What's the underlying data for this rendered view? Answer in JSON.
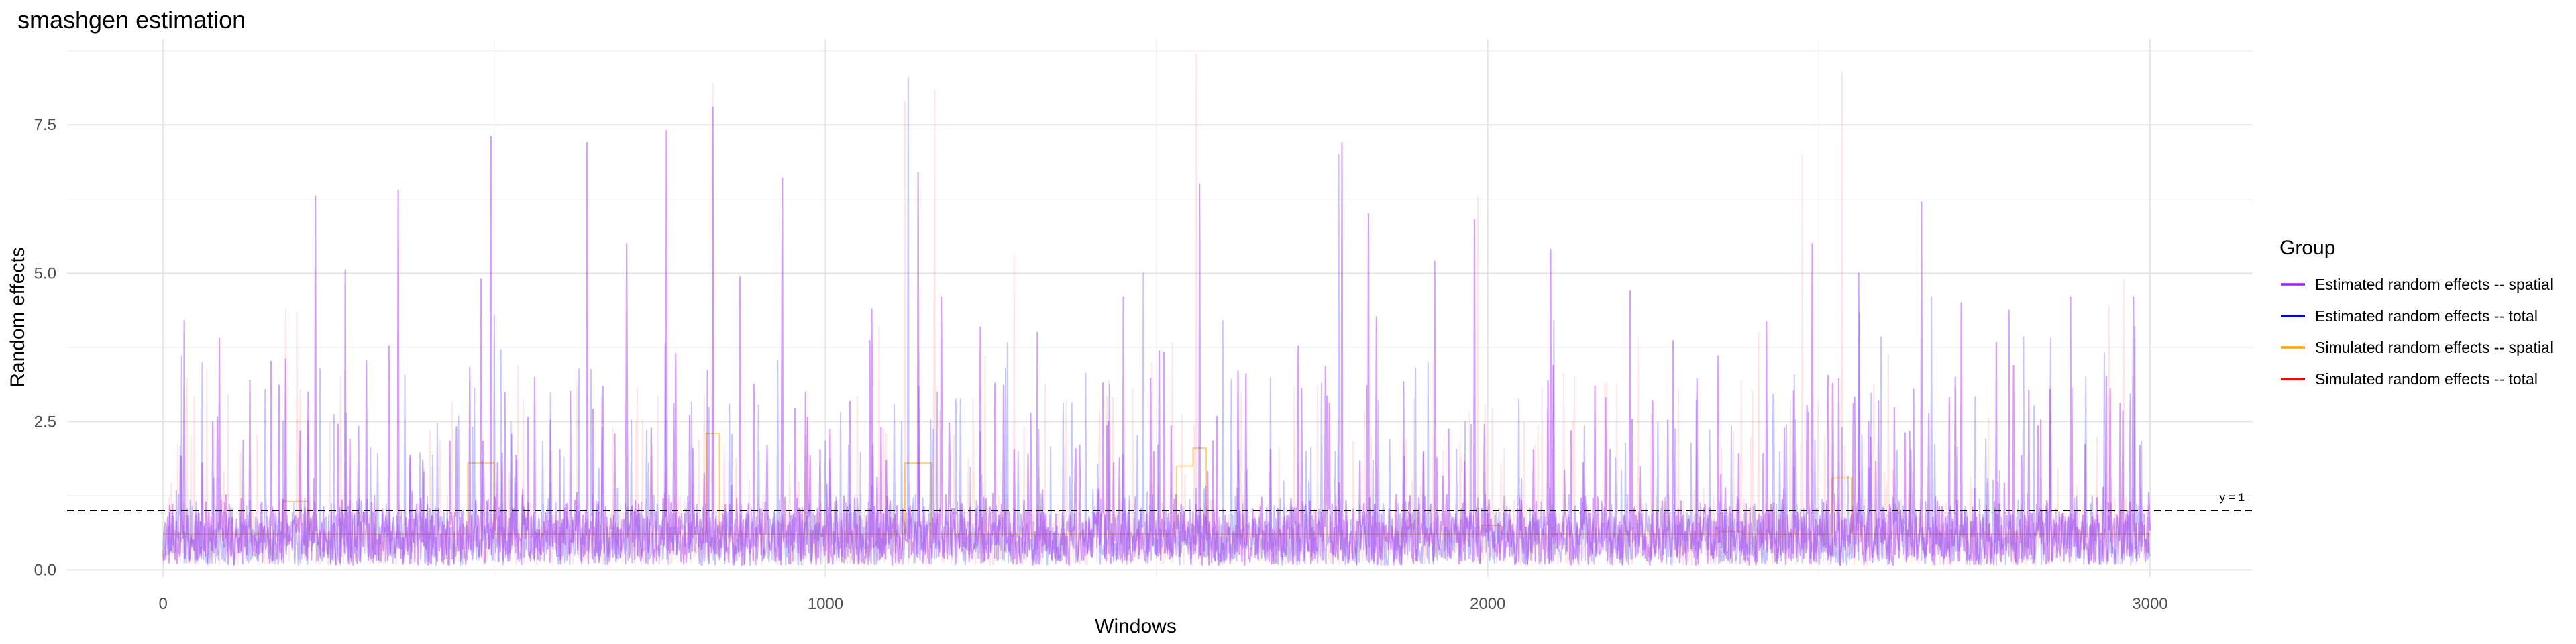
{
  "chart_data": {
    "type": "line",
    "title": "smashgen estimation",
    "xlabel": "Windows",
    "ylabel": "Random effects",
    "xlim": [
      -145,
      3155
    ],
    "ylim": [
      -0.12,
      8.95
    ],
    "x_ticks": [
      0,
      1000,
      2000,
      3000
    ],
    "y_ticks": [
      0.0,
      2.5,
      5.0,
      7.5
    ],
    "x_tick_labels": [
      "0",
      "1000",
      "2000",
      "3000"
    ],
    "y_tick_labels": [
      "0.0",
      "2.5",
      "5.0",
      "7.5"
    ],
    "grid": true,
    "legend_title": "Group",
    "legend_position": "right",
    "reference_line": {
      "y": 1,
      "label": "y = 1",
      "style": "dashed",
      "color": "#000000"
    },
    "series": [
      {
        "name": "Estimated random effects -- spatial",
        "color": "#A020F0",
        "style": "spiky",
        "seed": 11,
        "peaks": [
          [
            32,
            4.2
          ],
          [
            85,
            3.9
          ],
          [
            230,
            6.3
          ],
          [
            275,
            5.05
          ],
          [
            355,
            6.4
          ],
          [
            480,
            4.9
          ],
          [
            495,
            7.3
          ],
          [
            640,
            7.2
          ],
          [
            700,
            5.5
          ],
          [
            760,
            7.4
          ],
          [
            830,
            7.8
          ],
          [
            935,
            6.6
          ],
          [
            1070,
            4.4
          ],
          [
            1140,
            6.7
          ],
          [
            1175,
            4.6
          ],
          [
            1320,
            4.0
          ],
          [
            1450,
            4.6
          ],
          [
            1565,
            6.5
          ],
          [
            1780,
            7.2
          ],
          [
            1820,
            6.0
          ],
          [
            1920,
            5.2
          ],
          [
            1980,
            5.9
          ],
          [
            2095,
            5.4
          ],
          [
            2215,
            4.7
          ],
          [
            2490,
            5.5
          ],
          [
            2560,
            5.0
          ],
          [
            2655,
            6.2
          ],
          [
            2715,
            4.5
          ],
          [
            2880,
            4.6
          ],
          [
            2975,
            4.6
          ]
        ]
      },
      {
        "name": "Estimated random effects -- total",
        "color": "#0000FF",
        "style": "spiky",
        "seed": 23,
        "peaks": [
          [
            28,
            3.6
          ],
          [
            500,
            4.3
          ],
          [
            1125,
            8.3
          ],
          [
            1480,
            5.0
          ],
          [
            1600,
            4.2
          ],
          [
            1775,
            7.0
          ],
          [
            2100,
            4.2
          ],
          [
            2670,
            4.6
          ],
          [
            2850,
            3.9
          ]
        ]
      },
      {
        "name": "Simulated random effects -- spatial",
        "color": "#FFA500",
        "style": "step",
        "segments": [
          [
            0,
            180,
            0.6
          ],
          [
            180,
            220,
            1.15
          ],
          [
            220,
            460,
            0.6
          ],
          [
            460,
            500,
            1.8
          ],
          [
            500,
            820,
            0.6
          ],
          [
            820,
            840,
            2.3
          ],
          [
            840,
            1120,
            0.6
          ],
          [
            1120,
            1160,
            1.8
          ],
          [
            1160,
            1530,
            0.6
          ],
          [
            1530,
            1555,
            1.75
          ],
          [
            1555,
            1575,
            2.05
          ],
          [
            1575,
            1990,
            0.6
          ],
          [
            1990,
            2020,
            0.75
          ],
          [
            2020,
            2350,
            0.6
          ],
          [
            2350,
            2385,
            0.65
          ],
          [
            2385,
            2520,
            0.6
          ],
          [
            2520,
            2550,
            1.55
          ],
          [
            2550,
            3000,
            0.6
          ]
        ]
      },
      {
        "name": "Simulated random effects -- total",
        "color": "#FF0000",
        "style": "spiky",
        "seed": 37,
        "peaks": [
          [
            185,
            4.4
          ],
          [
            830,
            8.2
          ],
          [
            1120,
            7.9
          ],
          [
            1165,
            8.1
          ],
          [
            1285,
            5.3
          ],
          [
            1560,
            8.7
          ],
          [
            1985,
            6.3
          ],
          [
            2475,
            7.0
          ],
          [
            2535,
            8.4
          ],
          [
            2960,
            4.9
          ]
        ]
      }
    ]
  }
}
